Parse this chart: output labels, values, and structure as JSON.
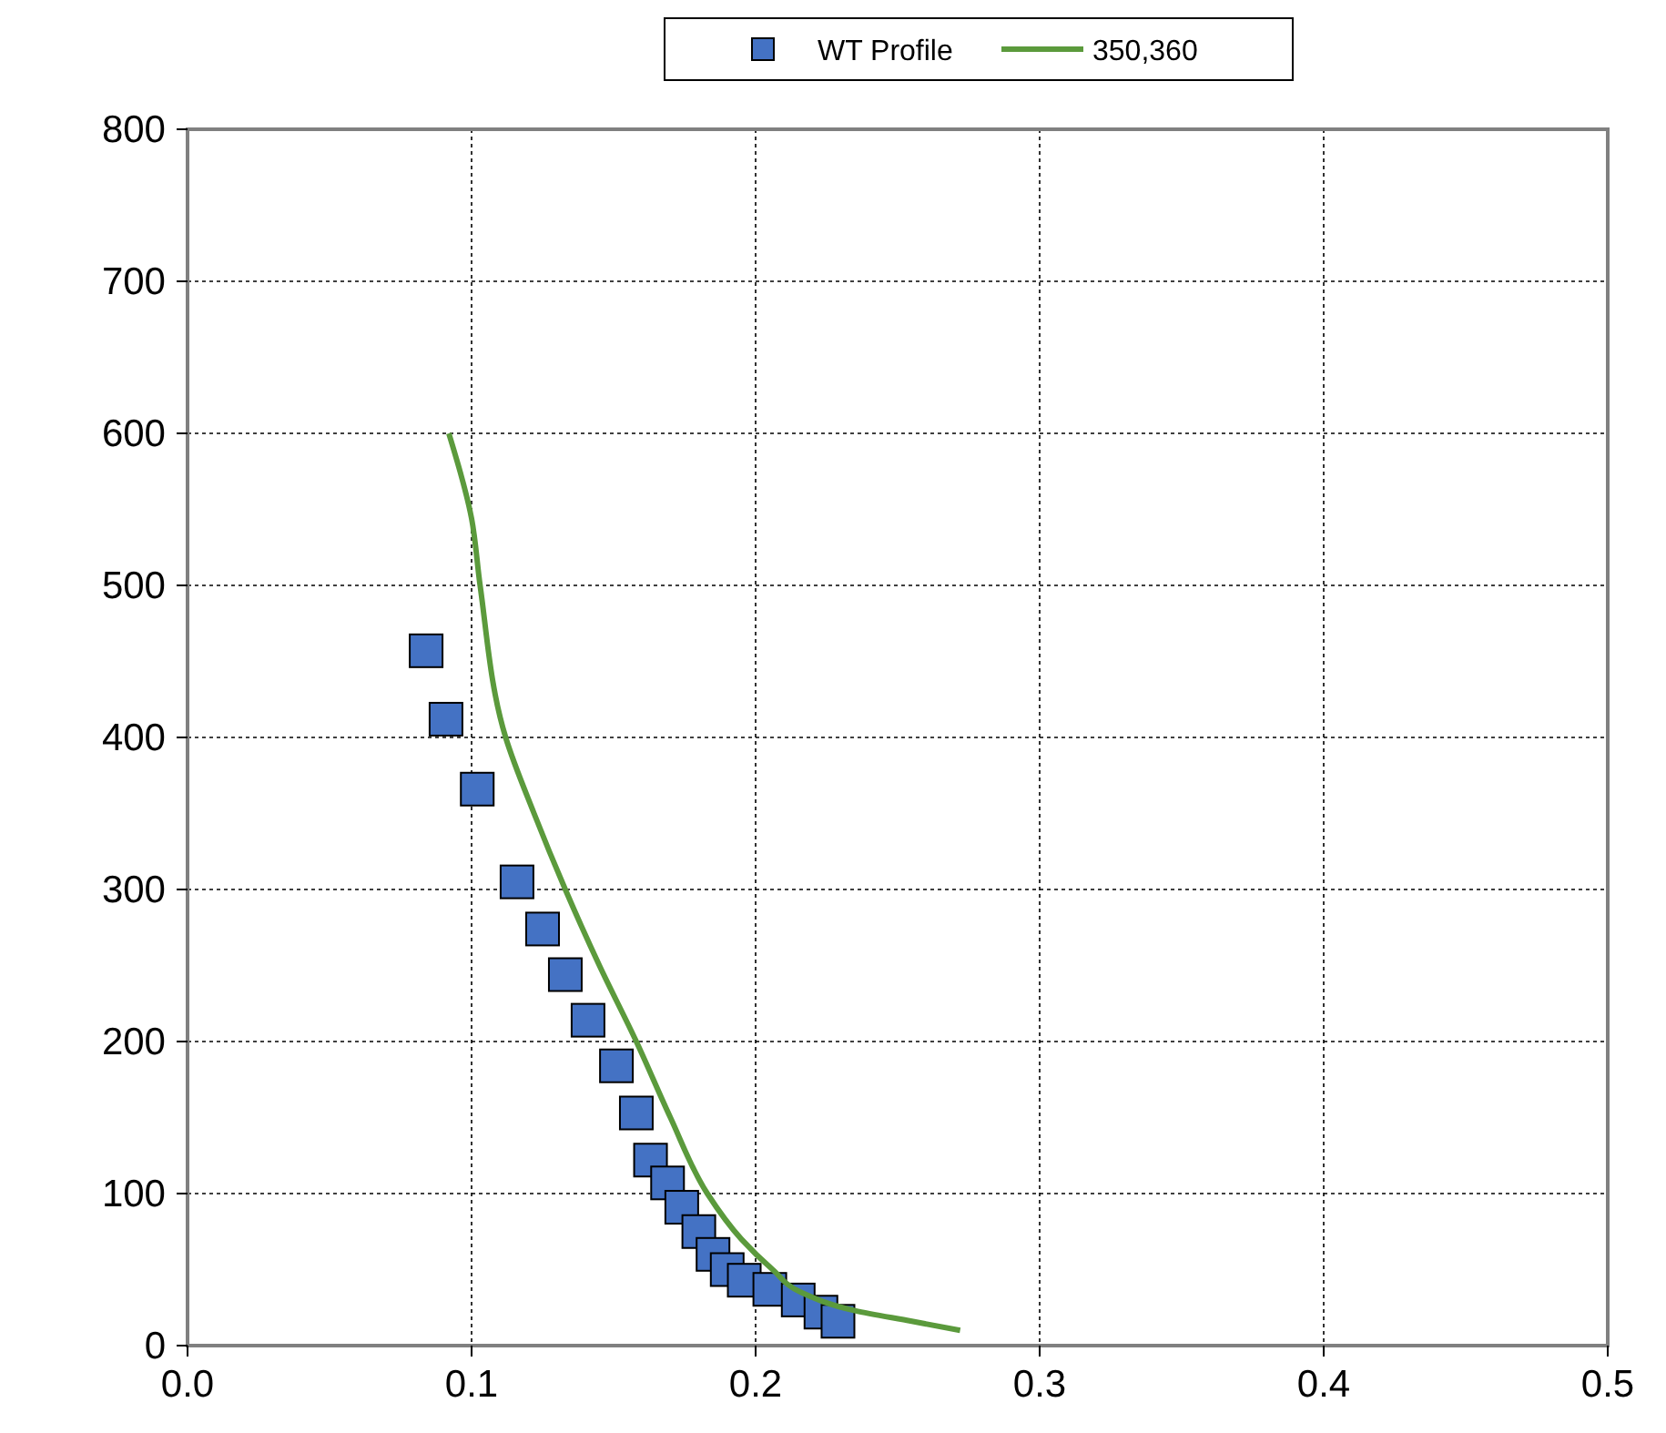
{
  "chart_data": {
    "type": "scatter",
    "xlim": [
      0,
      0.5
    ],
    "xticks": [
      {
        "value": 0,
        "label": "0.0"
      },
      0.1,
      0.2,
      0.3,
      0.4,
      0.5
    ],
    "ylim": [
      0,
      800
    ],
    "yticks": [
      0,
      100,
      200,
      300,
      400,
      500,
      600,
      700,
      800
    ],
    "grid": true,
    "legend": "top",
    "series": [
      {
        "name": "WT Profile",
        "marker": "square",
        "color": "#4472c4",
        "x": [
          0.084,
          0.091,
          0.102,
          0.116,
          0.125,
          0.133,
          0.141,
          0.151,
          0.158,
          0.163,
          0.169,
          0.174,
          0.18,
          0.185,
          0.19,
          0.196,
          0.205,
          0.215,
          0.223,
          0.229
        ],
        "values": [
          457,
          412,
          366,
          305,
          274,
          244,
          214,
          184,
          153,
          122,
          107,
          91,
          75,
          60,
          50,
          43,
          37,
          30,
          22,
          16
        ]
      },
      {
        "name": "350,360",
        "type": "line",
        "marker": "none",
        "line_style": "solid",
        "color": "#5b9a3c",
        "x": [
          0.092,
          0.1,
          0.103,
          0.112,
          0.122,
          0.133,
          0.145,
          0.158,
          0.17,
          0.183,
          0.195,
          0.206,
          0.216,
          0.235,
          0.255,
          0.272
        ],
        "values": [
          600,
          544,
          500,
          400,
          350,
          300,
          250,
          200,
          150,
          100,
          70,
          50,
          35,
          23,
          16,
          10
        ]
      }
    ]
  }
}
